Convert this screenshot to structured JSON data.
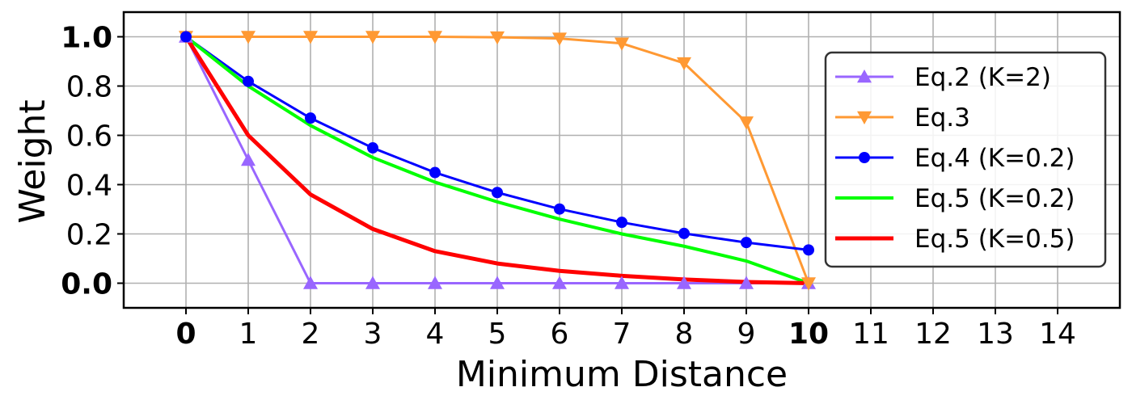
{
  "chart_data": {
    "type": "line",
    "xlabel": "Minimum Distance",
    "ylabel": "Weight",
    "xlim": [
      -1,
      15
    ],
    "ylim": [
      -0.1,
      1.1
    ],
    "x_ticks": [
      0,
      1,
      2,
      3,
      4,
      5,
      6,
      7,
      8,
      9,
      10,
      11,
      12,
      13,
      14
    ],
    "x_bold_ticks": [
      0,
      10
    ],
    "y_ticks": [
      0.0,
      0.2,
      0.4,
      0.6,
      0.8,
      1.0
    ],
    "y_tick_labels": [
      "0.0",
      "0.2",
      "0.4",
      "0.6",
      "0.8",
      "1.0"
    ],
    "y_bold_ticks": [
      0.0,
      1.0
    ],
    "grid": true,
    "legend_position": "right",
    "series": [
      {
        "name": "Eq.2 (K=2)",
        "color": "#9966ff",
        "marker": "triangle-up",
        "line_width": 3,
        "x": [
          0,
          1,
          2,
          3,
          4,
          5,
          6,
          7,
          8,
          9,
          10
        ],
        "y": [
          1.0,
          0.5,
          0.0,
          0.0,
          0.0,
          0.0,
          0.0,
          0.0,
          0.0,
          0.0,
          0.0
        ]
      },
      {
        "name": "Eq.3",
        "color": "#ff9933",
        "marker": "triangle-down",
        "line_width": 3,
        "x": [
          0,
          1,
          2,
          3,
          4,
          5,
          6,
          7,
          8,
          9,
          10
        ],
        "y": [
          1.0,
          1.0,
          1.0,
          1.0,
          1.0,
          0.998,
          0.993,
          0.973,
          0.893,
          0.653,
          0.0
        ]
      },
      {
        "name": "Eq.4 (K=0.2)",
        "color": "#0000ff",
        "marker": "circle",
        "line_width": 3,
        "x": [
          0,
          1,
          2,
          3,
          4,
          5,
          6,
          7,
          8,
          9,
          10
        ],
        "y": [
          1.0,
          0.819,
          0.67,
          0.549,
          0.449,
          0.368,
          0.301,
          0.247,
          0.202,
          0.165,
          0.135
        ]
      },
      {
        "name": "Eq.5 (K=0.2)",
        "color": "#00ff00",
        "marker": "none",
        "line_width": 4,
        "x": [
          0,
          1,
          2,
          3,
          4,
          5,
          6,
          7,
          8,
          9,
          10
        ],
        "y": [
          1.0,
          0.8,
          0.64,
          0.51,
          0.41,
          0.33,
          0.26,
          0.2,
          0.15,
          0.09,
          0.0
        ]
      },
      {
        "name": "Eq.5 (K=0.5)",
        "color": "#ff0000",
        "marker": "none",
        "line_width": 5,
        "x": [
          0,
          1,
          2,
          3,
          4,
          5,
          6,
          7,
          8,
          9,
          10
        ],
        "y": [
          1.0,
          0.6,
          0.36,
          0.22,
          0.13,
          0.08,
          0.05,
          0.03,
          0.015,
          0.005,
          0.0
        ]
      }
    ]
  }
}
